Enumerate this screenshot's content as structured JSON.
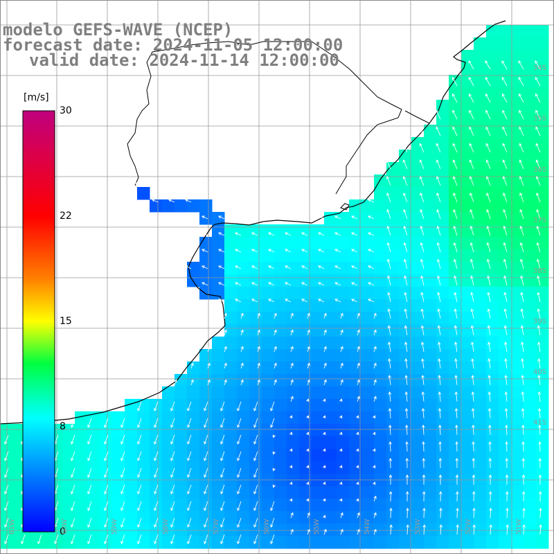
{
  "title": {
    "line1": "modelo GEFS-WAVE (NCEP)",
    "line2": "forecast date: 2024-11-05 12:00:00",
    "line3": "valid date: 2024-11-14 12:00:00"
  },
  "colorbar": {
    "unit": "[m/s]",
    "ticks": [
      {
        "label": "30",
        "value": 30
      },
      {
        "label": "22",
        "value": 22
      },
      {
        "label": "15",
        "value": 15
      },
      {
        "label": "8",
        "value": 8
      },
      {
        "label": "0",
        "value": 0
      }
    ],
    "min": 0,
    "max": 30,
    "colors": [
      "#0000ff",
      "#00ffff",
      "#00ff00",
      "#ffff00",
      "#ff0000",
      "#c0007f"
    ]
  },
  "map": {
    "land_color": "#ffffff",
    "grid_color": "#999999",
    "coast_color": "#000000",
    "arrow_color": "#ffffff",
    "lat_labels": [
      "34S",
      "35S",
      "36S",
      "37S",
      "38S",
      "39S",
      "40S",
      "41S"
    ],
    "lon_labels": [
      "61W",
      "60W",
      "59W",
      "58W",
      "57W",
      "56W",
      "55W",
      "54W",
      "53W",
      "52W",
      "51W"
    ]
  }
}
